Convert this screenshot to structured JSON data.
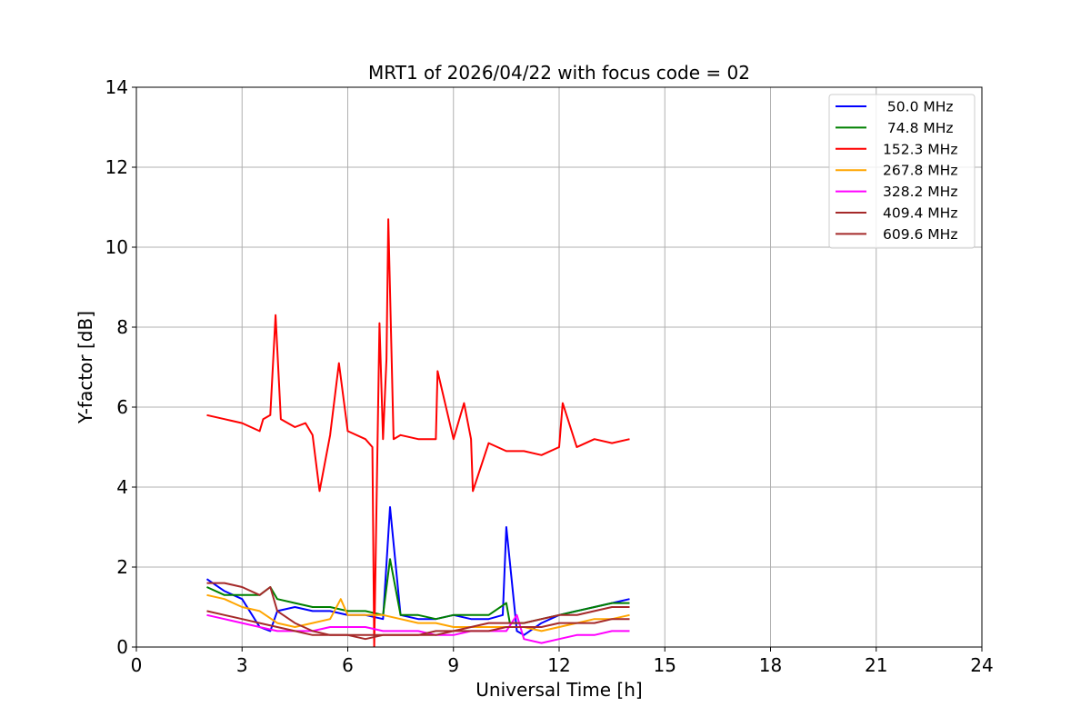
{
  "chart_data": {
    "type": "line",
    "title": "MRT1 of 2026/04/22 with focus code = 02",
    "xlabel": "Universal Time [h]",
    "ylabel": "Y-factor [dB]",
    "xlim": [
      0,
      24
    ],
    "ylim": [
      0,
      14
    ],
    "x_ticks": [
      0,
      3,
      6,
      9,
      12,
      15,
      18,
      21,
      24
    ],
    "y_ticks": [
      0,
      2,
      4,
      6,
      8,
      10,
      12,
      14
    ],
    "grid": true,
    "legend_position": "top-right",
    "series": [
      {
        "name": " 50.0 MHz",
        "color": "#0000ff",
        "x": [
          2.0,
          2.5,
          3.0,
          3.5,
          3.8,
          4.0,
          4.5,
          5.0,
          5.5,
          6.0,
          6.5,
          7.0,
          7.2,
          7.5,
          8.0,
          8.5,
          9.0,
          9.5,
          10.0,
          10.4,
          10.5,
          10.8,
          11.0,
          11.5,
          12.0,
          12.5,
          13.0,
          13.5,
          14.0
        ],
        "y": [
          1.7,
          1.4,
          1.2,
          0.5,
          0.4,
          0.9,
          1.0,
          0.9,
          0.9,
          0.8,
          0.8,
          0.7,
          3.5,
          0.8,
          0.7,
          0.7,
          0.8,
          0.7,
          0.7,
          0.8,
          3.0,
          0.4,
          0.3,
          0.6,
          0.8,
          0.9,
          1.0,
          1.1,
          1.2
        ]
      },
      {
        "name": " 74.8 MHz",
        "color": "#008000",
        "x": [
          2.0,
          2.5,
          3.0,
          3.5,
          3.8,
          4.0,
          4.5,
          5.0,
          5.5,
          6.0,
          6.5,
          7.0,
          7.2,
          7.5,
          8.0,
          8.5,
          9.0,
          9.5,
          10.0,
          10.5,
          10.6,
          11.0,
          11.5,
          12.0,
          12.5,
          13.0,
          13.5,
          14.0
        ],
        "y": [
          1.5,
          1.3,
          1.3,
          1.3,
          1.5,
          1.2,
          1.1,
          1.0,
          1.0,
          0.9,
          0.9,
          0.8,
          2.2,
          0.8,
          0.8,
          0.7,
          0.8,
          0.8,
          0.8,
          1.1,
          0.6,
          0.6,
          0.7,
          0.8,
          0.9,
          1.0,
          1.1,
          1.1
        ]
      },
      {
        "name": "152.3 MHz",
        "color": "#ff0000",
        "x": [
          2.0,
          2.5,
          3.0,
          3.5,
          3.6,
          3.8,
          3.95,
          4.1,
          4.5,
          4.8,
          5.0,
          5.2,
          5.5,
          5.75,
          6.0,
          6.5,
          6.7,
          6.75,
          6.9,
          7.0,
          7.1,
          7.15,
          7.3,
          7.5,
          8.0,
          8.5,
          8.55,
          9.0,
          9.3,
          9.5,
          9.55,
          10.0,
          10.5,
          11.0,
          11.5,
          12.0,
          12.1,
          12.5,
          13.0,
          13.5,
          14.0
        ],
        "y": [
          5.8,
          5.7,
          5.6,
          5.4,
          5.7,
          5.8,
          8.3,
          5.7,
          5.5,
          5.6,
          5.3,
          3.9,
          5.3,
          7.1,
          5.4,
          5.2,
          5.0,
          0.0,
          8.1,
          5.2,
          7.2,
          10.7,
          5.2,
          5.3,
          5.2,
          5.2,
          6.9,
          5.2,
          6.1,
          5.2,
          3.9,
          5.1,
          4.9,
          4.9,
          4.8,
          5.0,
          6.1,
          5.0,
          5.2,
          5.1,
          5.2
        ]
      },
      {
        "name": "267.8 MHz",
        "color": "#ffa500",
        "x": [
          2.0,
          2.5,
          3.0,
          3.5,
          4.0,
          4.5,
          5.0,
          5.5,
          5.8,
          6.0,
          6.5,
          7.0,
          7.5,
          8.0,
          8.5,
          9.0,
          9.5,
          10.0,
          10.5,
          11.0,
          11.5,
          12.0,
          12.5,
          13.0,
          13.5,
          14.0
        ],
        "y": [
          1.3,
          1.2,
          1.0,
          0.9,
          0.6,
          0.5,
          0.6,
          0.7,
          1.2,
          0.8,
          0.8,
          0.8,
          0.7,
          0.6,
          0.6,
          0.5,
          0.5,
          0.5,
          0.5,
          0.5,
          0.4,
          0.5,
          0.6,
          0.7,
          0.7,
          0.8
        ]
      },
      {
        "name": "328.2 MHz",
        "color": "#ff00ff",
        "x": [
          2.0,
          2.5,
          3.0,
          3.5,
          4.0,
          4.5,
          5.0,
          5.5,
          6.0,
          6.5,
          7.0,
          7.5,
          8.0,
          8.5,
          9.0,
          9.5,
          10.0,
          10.5,
          10.8,
          11.0,
          11.5,
          12.0,
          12.5,
          13.0,
          13.5,
          14.0
        ],
        "y": [
          0.8,
          0.7,
          0.6,
          0.5,
          0.4,
          0.4,
          0.4,
          0.5,
          0.5,
          0.5,
          0.4,
          0.4,
          0.4,
          0.3,
          0.3,
          0.4,
          0.4,
          0.4,
          0.8,
          0.2,
          0.1,
          0.2,
          0.3,
          0.3,
          0.4,
          0.4
        ]
      },
      {
        "name": "409.4 MHz",
        "color": "#a52a2a",
        "x": [
          2.0,
          2.5,
          3.0,
          3.5,
          3.8,
          4.0,
          4.5,
          5.0,
          5.5,
          6.0,
          6.5,
          7.0,
          7.5,
          8.0,
          8.5,
          9.0,
          9.5,
          10.0,
          10.5,
          11.0,
          11.5,
          12.0,
          12.5,
          13.0,
          13.5,
          14.0
        ],
        "y": [
          1.6,
          1.6,
          1.5,
          1.3,
          1.5,
          0.9,
          0.6,
          0.4,
          0.3,
          0.3,
          0.3,
          0.3,
          0.3,
          0.3,
          0.4,
          0.4,
          0.5,
          0.6,
          0.6,
          0.6,
          0.7,
          0.8,
          0.8,
          0.9,
          1.0,
          1.0
        ]
      },
      {
        "name": "609.6 MHz",
        "color": "#a52a2a",
        "x": [
          2.0,
          2.5,
          3.0,
          3.5,
          4.0,
          4.5,
          5.0,
          5.5,
          6.0,
          6.5,
          7.0,
          7.5,
          8.0,
          8.5,
          9.0,
          9.5,
          10.0,
          10.5,
          11.0,
          11.5,
          12.0,
          12.5,
          13.0,
          13.5,
          14.0
        ],
        "y": [
          0.9,
          0.8,
          0.7,
          0.6,
          0.5,
          0.4,
          0.3,
          0.3,
          0.3,
          0.2,
          0.3,
          0.3,
          0.3,
          0.3,
          0.4,
          0.4,
          0.4,
          0.5,
          0.5,
          0.5,
          0.6,
          0.6,
          0.6,
          0.7,
          0.7
        ]
      }
    ]
  }
}
